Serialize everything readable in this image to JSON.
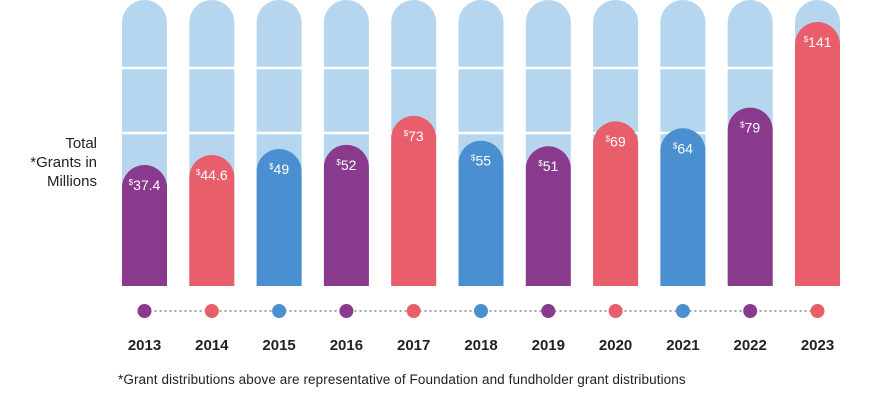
{
  "chart_data": {
    "type": "bar",
    "ylabel_lines": [
      "Total",
      "*Grants in",
      "Millions"
    ],
    "categories": [
      "2013",
      "2014",
      "2015",
      "2016",
      "2017",
      "2018",
      "2019",
      "2020",
      "2021",
      "2022",
      "2023"
    ],
    "values": [
      37.4,
      44.6,
      49,
      52,
      73,
      55,
      51,
      69,
      64,
      79,
      141
    ],
    "value_labels": [
      "37.4",
      "44.6",
      "49",
      "52",
      "73",
      "55",
      "51",
      "69",
      "64",
      "79",
      "141"
    ],
    "currency_symbol": "$",
    "bar_colors": [
      "#8a3a8c",
      "#e85e6a",
      "#4a90d0",
      "#8a3a8c",
      "#e85e6a",
      "#4a90d0",
      "#8a3a8c",
      "#e85e6a",
      "#4a90d0",
      "#8a3a8c",
      "#e85e6a"
    ],
    "track_color": "#b6d6f0",
    "grid": true,
    "footnote": "*Grant distributions above are representative of Foundation and fundholder grant distributions"
  }
}
